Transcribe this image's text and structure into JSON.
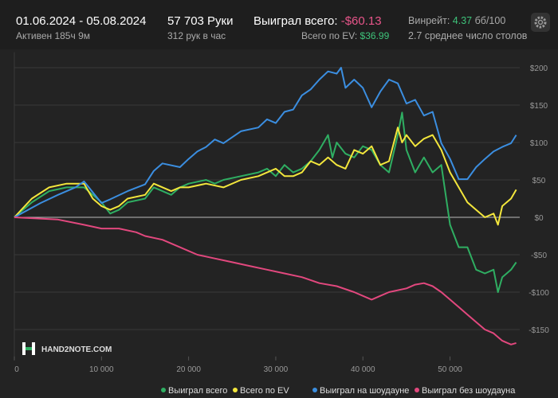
{
  "header": {
    "period": "01.06.2024 - 05.08.2024",
    "active": "Активен 185ч 9м",
    "hands": "57 703 Руки",
    "hands_per_hour": "312 рук в час",
    "won_label": "Выиграл всего:",
    "won_value": "-$60.13",
    "ev_label": "Всего по EV:",
    "ev_value": "$36.99",
    "winrate_label": "Винрейт:",
    "winrate_value": "4.37",
    "winrate_unit": "бб/100",
    "tables": "2.7 среднее число столов"
  },
  "watermark": "HAND2NOTE.COM",
  "chart_data": {
    "type": "line",
    "xlim": [
      0,
      58000
    ],
    "ylim": [
      -170,
      210
    ],
    "xticks": [
      0,
      {
        "value": 10000,
        "label": "10 000"
      },
      {
        "value": 20000,
        "label": "20 000"
      },
      {
        "value": 30000,
        "label": "30 000"
      },
      {
        "value": 40000,
        "label": "40 000"
      },
      {
        "value": 50000,
        "label": "50 000"
      }
    ],
    "yticks": [
      {
        "value": 200,
        "label": "$200"
      },
      {
        "value": 150,
        "label": "$150"
      },
      {
        "value": 100,
        "label": "$100"
      },
      {
        "value": 50,
        "label": "$50"
      },
      {
        "value": 0,
        "label": "$0"
      },
      {
        "value": -50,
        "label": "-$50"
      },
      {
        "value": -100,
        "label": "-$100"
      },
      {
        "value": -150,
        "label": "-$150"
      }
    ],
    "grid": true,
    "series": [
      {
        "name": "Выиграл всего",
        "color": "#2fae62",
        "x": [
          0,
          2000,
          4000,
          6000,
          8000,
          9000,
          10000,
          11000,
          12000,
          13000,
          15000,
          16000,
          17000,
          18000,
          19000,
          20000,
          22000,
          23000,
          24000,
          26000,
          28000,
          29000,
          30000,
          31000,
          32000,
          33000,
          34000,
          35000,
          36000,
          36500,
          37000,
          38000,
          39000,
          40000,
          41000,
          42000,
          43000,
          44000,
          44500,
          45000,
          46000,
          47000,
          48000,
          49000,
          49500,
          50000,
          51000,
          52000,
          53000,
          54000,
          55000,
          55500,
          56000,
          57000,
          57600
        ],
        "values": [
          0,
          20,
          35,
          40,
          40,
          30,
          20,
          5,
          10,
          20,
          25,
          40,
          35,
          30,
          40,
          45,
          50,
          45,
          50,
          55,
          60,
          65,
          55,
          70,
          60,
          65,
          75,
          90,
          110,
          80,
          100,
          85,
          80,
          95,
          90,
          70,
          60,
          110,
          140,
          90,
          60,
          80,
          60,
          70,
          30,
          -10,
          -40,
          -40,
          -70,
          -75,
          -70,
          -100,
          -80,
          -70,
          -60.13
        ]
      },
      {
        "name": "Всего по EV",
        "color": "#f3e63c",
        "x": [
          0,
          2000,
          4000,
          6000,
          8000,
          9000,
          10000,
          11000,
          12000,
          13000,
          15000,
          16000,
          18000,
          19000,
          20000,
          22000,
          24000,
          26000,
          28000,
          30000,
          31000,
          32000,
          33000,
          34000,
          35000,
          36000,
          37000,
          38000,
          39000,
          40000,
          41000,
          42000,
          43000,
          44000,
          44500,
          45000,
          46000,
          47000,
          48000,
          49000,
          50000,
          51000,
          52000,
          53000,
          54000,
          55000,
          55500,
          56000,
          57000,
          57600
        ],
        "values": [
          0,
          25,
          40,
          45,
          45,
          25,
          15,
          10,
          15,
          25,
          30,
          45,
          35,
          40,
          40,
          45,
          40,
          50,
          55,
          65,
          55,
          55,
          60,
          75,
          70,
          80,
          70,
          65,
          90,
          85,
          95,
          70,
          75,
          120,
          100,
          110,
          95,
          105,
          110,
          90,
          60,
          40,
          20,
          10,
          0,
          5,
          -10,
          15,
          25,
          36.99
        ]
      },
      {
        "name": "Выиграл на шоудауне",
        "color": "#3b8ee0",
        "x": [
          0,
          3000,
          5000,
          7000,
          8000,
          10000,
          11000,
          13000,
          15000,
          16000,
          17000,
          19000,
          20000,
          21000,
          22000,
          23000,
          24000,
          26000,
          28000,
          29000,
          30000,
          31000,
          32000,
          33000,
          34000,
          35000,
          36000,
          37000,
          37500,
          38000,
          39000,
          40000,
          41000,
          42000,
          43000,
          44000,
          45000,
          46000,
          47000,
          48000,
          49000,
          50000,
          51000,
          52000,
          53000,
          54000,
          55000,
          56000,
          57000,
          57600
        ],
        "values": [
          0,
          19,
          30,
          40,
          48,
          19,
          24,
          35,
          44,
          62,
          72,
          67,
          78,
          88,
          94,
          104,
          99,
          115,
          120,
          131,
          126,
          141,
          144,
          163,
          171,
          184,
          195,
          192,
          200,
          173,
          184,
          173,
          147,
          168,
          184,
          179,
          152,
          157,
          136,
          141,
          99,
          78,
          51,
          51,
          67,
          78,
          88,
          94,
          99,
          110
        ]
      },
      {
        "name": "Выиграл без шоудауна",
        "color": "#e2487e",
        "x": [
          0,
          5000,
          8000,
          10000,
          12000,
          14000,
          15000,
          17000,
          19000,
          21000,
          23000,
          25000,
          27000,
          29000,
          31000,
          33000,
          35000,
          37000,
          39000,
          41000,
          42000,
          43000,
          45000,
          46000,
          47000,
          48000,
          49000,
          50000,
          51000,
          52000,
          53000,
          54000,
          55000,
          56000,
          57000,
          57600
        ],
        "values": [
          0,
          -3,
          -10,
          -15,
          -15,
          -20,
          -25,
          -30,
          -40,
          -50,
          -55,
          -60,
          -65,
          -70,
          -75,
          -80,
          -88,
          -92,
          -100,
          -110,
          -105,
          -100,
          -95,
          -90,
          -88,
          -92,
          -100,
          -110,
          -120,
          -130,
          -140,
          -150,
          -155,
          -165,
          -170,
          -168
        ]
      }
    ]
  }
}
